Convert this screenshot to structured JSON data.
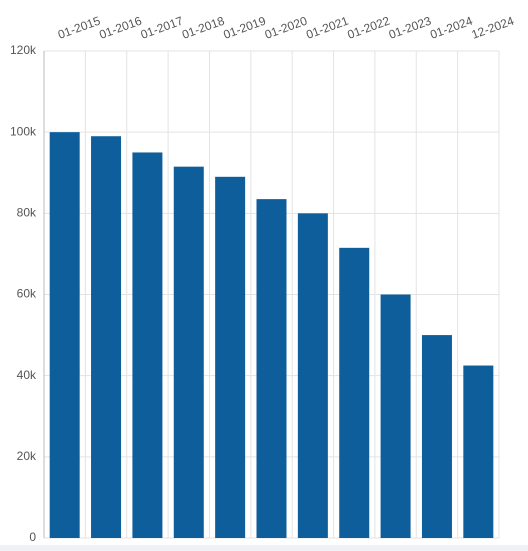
{
  "chart_data": {
    "type": "bar",
    "categories": [
      "01-2015",
      "01-2016",
      "01-2017",
      "01-2018",
      "01-2019",
      "01-2020",
      "01-2021",
      "01-2022",
      "01-2023",
      "01-2024",
      "12-2024"
    ],
    "values": [
      100000,
      99000,
      95000,
      91500,
      89000,
      83500,
      80000,
      71500,
      60000,
      50000,
      42500
    ],
    "color": "#0f5e9c",
    "ylim": [
      0,
      120000
    ],
    "yticks": [
      {
        "value": 0,
        "label": "0"
      },
      {
        "value": 20000,
        "label": "20k"
      },
      {
        "value": 40000,
        "label": "40k"
      },
      {
        "value": 60000,
        "label": "60k"
      },
      {
        "value": 80000,
        "label": "80k"
      },
      {
        "value": 100000,
        "label": "100k"
      },
      {
        "value": 120000,
        "label": "120k"
      }
    ],
    "grid": true
  }
}
